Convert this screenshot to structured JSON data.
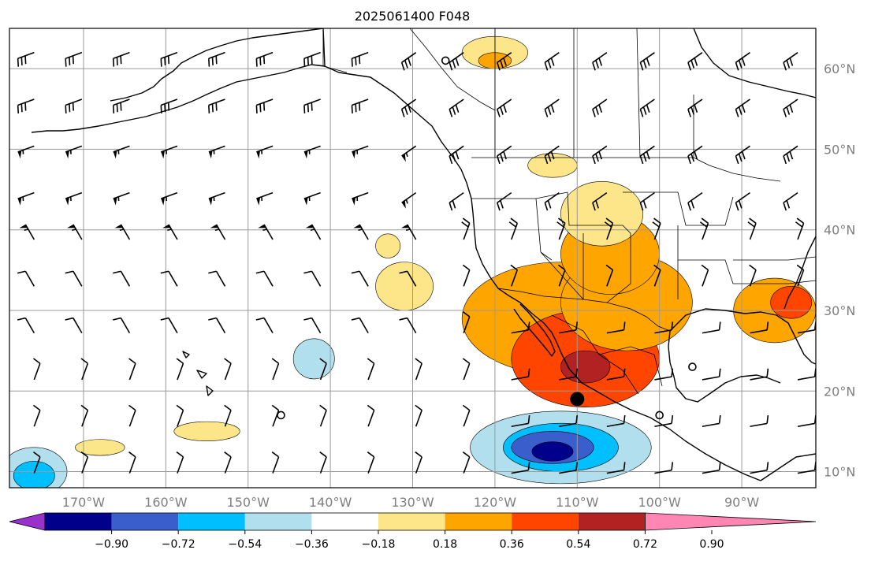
{
  "title": "2025061400 F048",
  "map": {
    "lon_range": [
      -179,
      -81
    ],
    "lat_range": [
      8,
      65
    ],
    "lon_ticks": [
      {
        "value": -170,
        "label": "170°W"
      },
      {
        "value": -160,
        "label": "160°W"
      },
      {
        "value": -150,
        "label": "150°W"
      },
      {
        "value": -140,
        "label": "140°W"
      },
      {
        "value": -130,
        "label": "130°W"
      },
      {
        "value": -120,
        "label": "120°W"
      },
      {
        "value": -110,
        "label": "110°W"
      },
      {
        "value": -100,
        "label": "100°W"
      },
      {
        "value": -90,
        "label": "90°W"
      }
    ],
    "lat_ticks": [
      {
        "value": 60,
        "label": "60°N"
      },
      {
        "value": 50,
        "label": "50°N"
      },
      {
        "value": 40,
        "label": "40°N"
      },
      {
        "value": 30,
        "label": "30°N"
      },
      {
        "value": 20,
        "label": "20°N"
      },
      {
        "value": 10,
        "label": "10°N"
      }
    ],
    "gridlines": true
  },
  "colorbar": {
    "colors": [
      "#9932cc",
      "#00008b",
      "#3a5fcd",
      "#00bfff",
      "#b2dfee",
      "#ffffff",
      "#fde68a",
      "#ffa500",
      "#ff4500",
      "#b22222",
      "#ff85b3"
    ],
    "labels": [
      "−0.90",
      "−0.72",
      "−0.54",
      "−0.36",
      "−0.18",
      "0.18",
      "0.36",
      "0.54",
      "0.72",
      "0.90"
    ],
    "extend": "both"
  },
  "field_blobs": [
    {
      "lon": -112,
      "lat": 29,
      "rx": 12,
      "ry": 7,
      "level": 0.36
    },
    {
      "lon": -109,
      "lat": 24,
      "rx": 9,
      "ry": 6,
      "level": 0.54
    },
    {
      "lon": -109,
      "lat": 23,
      "rx": 3,
      "ry": 2,
      "level": 0.72
    },
    {
      "lon": -104,
      "lat": 31,
      "rx": 8,
      "ry": 6,
      "level": 0.36
    },
    {
      "lon": -106,
      "lat": 37,
      "rx": 6,
      "ry": 5,
      "level": 0.36
    },
    {
      "lon": -107,
      "lat": 42,
      "rx": 5,
      "ry": 4,
      "level": 0.18
    },
    {
      "lon": -86,
      "lat": 30,
      "rx": 5,
      "ry": 4,
      "level": 0.36
    },
    {
      "lon": -84,
      "lat": 31,
      "rx": 2.5,
      "ry": 2,
      "level": 0.54
    },
    {
      "lon": -131,
      "lat": 33,
      "rx": 3.5,
      "ry": 3,
      "level": 0.18
    },
    {
      "lon": -133,
      "lat": 38,
      "rx": 1.5,
      "ry": 1.5,
      "level": 0.18
    },
    {
      "lon": -120,
      "lat": 62,
      "rx": 4,
      "ry": 2,
      "level": 0.18
    },
    {
      "lon": -120,
      "lat": 61,
      "rx": 2,
      "ry": 1,
      "level": 0.36
    },
    {
      "lon": -113,
      "lat": 48,
      "rx": 3,
      "ry": 1.5,
      "level": 0.18
    },
    {
      "lon": -155,
      "lat": 15,
      "rx": 4,
      "ry": 1.2,
      "level": 0.18
    },
    {
      "lon": -168,
      "lat": 13,
      "rx": 3,
      "ry": 1,
      "level": 0.18
    },
    {
      "lon": -142,
      "lat": 24,
      "rx": 2.5,
      "ry": 2.5,
      "level": -0.18
    },
    {
      "lon": -112,
      "lat": 13,
      "rx": 11,
      "ry": 4.5,
      "level": -0.18
    },
    {
      "lon": -112,
      "lat": 13,
      "rx": 7,
      "ry": 3,
      "level": -0.36
    },
    {
      "lon": -113,
      "lat": 13,
      "rx": 5,
      "ry": 2,
      "level": -0.54
    },
    {
      "lon": -113,
      "lat": 12.5,
      "rx": 2.5,
      "ry": 1.2,
      "level": -0.72
    },
    {
      "lon": -176,
      "lat": 10,
      "rx": 4,
      "ry": 3,
      "level": -0.18
    },
    {
      "lon": -176,
      "lat": 9.5,
      "rx": 2.5,
      "ry": 1.8,
      "level": -0.36
    }
  ],
  "markers": [
    {
      "lon": -110,
      "lat": 19,
      "type": "filled-circle"
    },
    {
      "lon": -100,
      "lat": 17,
      "type": "open-circle"
    },
    {
      "lon": -96,
      "lat": 23,
      "type": "open-circle"
    },
    {
      "lon": -126,
      "lat": 61,
      "type": "open-circle"
    },
    {
      "lon": -146,
      "lat": 17,
      "type": "open-circle"
    }
  ]
}
